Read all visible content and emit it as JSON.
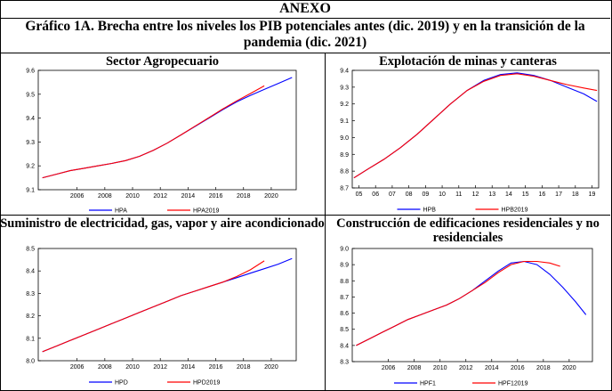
{
  "header": {
    "annex": "ANEXO",
    "figure_title": "Gráfico 1A. Brecha entre los niveles los PIB potenciales antes (dic. 2019) y en la transición de la pandemia (dic. 2021)"
  },
  "colors": {
    "series_a": "#0000ff",
    "series_b": "#ff0000"
  },
  "chart_data": [
    {
      "type": "line",
      "title": "Sector Agropecuario",
      "xlim": [
        2003.2,
        2021.8
      ],
      "ylim": [
        9.1,
        9.6
      ],
      "xticks": [
        2006,
        2008,
        2010,
        2012,
        2014,
        2016,
        2018,
        2020
      ],
      "yticks": [
        9.1,
        9.2,
        9.3,
        9.4,
        9.5,
        9.6
      ],
      "ytick_labels": [
        "9.1",
        "9.2",
        "9.3",
        "9.4",
        "9.5",
        "9.6"
      ],
      "series": [
        {
          "name": "HPA",
          "color": "#0000ff",
          "x": [
            2003.5,
            2004.5,
            2005.5,
            2006.5,
            2007.5,
            2008.5,
            2009.5,
            2010.5,
            2011.5,
            2012.5,
            2013.5,
            2014.5,
            2015.5,
            2016.5,
            2017.5,
            2018.5,
            2019.5,
            2020.5,
            2021.5
          ],
          "y": [
            9.15,
            9.165,
            9.18,
            9.19,
            9.2,
            9.21,
            9.222,
            9.24,
            9.265,
            9.295,
            9.33,
            9.365,
            9.4,
            9.435,
            9.468,
            9.495,
            9.52,
            9.545,
            9.57
          ]
        },
        {
          "name": "HPA2019",
          "color": "#ff0000",
          "x": [
            2003.5,
            2004.5,
            2005.5,
            2006.5,
            2007.5,
            2008.5,
            2009.5,
            2010.5,
            2011.5,
            2012.5,
            2013.5,
            2014.5,
            2015.5,
            2016.5,
            2017.5,
            2018.5,
            2019.5
          ],
          "y": [
            9.15,
            9.165,
            9.18,
            9.19,
            9.2,
            9.21,
            9.222,
            9.24,
            9.265,
            9.295,
            9.33,
            9.366,
            9.402,
            9.438,
            9.472,
            9.503,
            9.535
          ]
        }
      ]
    },
    {
      "type": "line",
      "title": "Explotación de minas y canteras",
      "xlim": [
        2004.6,
        2019.4
      ],
      "ylim": [
        8.7,
        9.4
      ],
      "xticks": [
        2005,
        2006,
        2007,
        2008,
        2009,
        2010,
        2011,
        2012,
        2013,
        2014,
        2015,
        2016,
        2017,
        2018,
        2019
      ],
      "xtick_labels": [
        "05",
        "06",
        "07",
        "08",
        "09",
        "10",
        "11",
        "12",
        "13",
        "14",
        "15",
        "16",
        "17",
        "18",
        "19"
      ],
      "yticks": [
        8.7,
        8.8,
        8.9,
        9.0,
        9.1,
        9.2,
        9.3,
        9.4
      ],
      "ytick_labels": [
        "8.7",
        "8.8",
        "8.9",
        "9.0",
        "9.1",
        "9.2",
        "9.3",
        "9.4"
      ],
      "series": [
        {
          "name": "HPB",
          "color": "#0000ff",
          "x": [
            2004.7,
            2005.5,
            2006.5,
            2007.5,
            2008.5,
            2009.5,
            2010.5,
            2011.5,
            2012.5,
            2013.5,
            2014.5,
            2015.5,
            2016.5,
            2017.5,
            2018.5,
            2019.3
          ],
          "y": [
            8.76,
            8.81,
            8.87,
            8.94,
            9.02,
            9.11,
            9.2,
            9.28,
            9.34,
            9.375,
            9.385,
            9.37,
            9.34,
            9.3,
            9.26,
            9.215
          ]
        },
        {
          "name": "HPB2019",
          "color": "#ff0000",
          "x": [
            2004.7,
            2005.5,
            2006.5,
            2007.5,
            2008.5,
            2009.5,
            2010.5,
            2011.5,
            2012.5,
            2013.5,
            2014.5,
            2015.5,
            2016.5,
            2017.5,
            2018.5,
            2019.3
          ],
          "y": [
            8.76,
            8.81,
            8.87,
            8.94,
            9.02,
            9.11,
            9.2,
            9.28,
            9.335,
            9.37,
            9.38,
            9.365,
            9.34,
            9.315,
            9.295,
            9.28
          ]
        }
      ]
    },
    {
      "type": "line",
      "title": "Suministro de electricidad, gas, vapor y aire acondicionado",
      "xlim": [
        2003.2,
        2021.8
      ],
      "ylim": [
        8.0,
        8.5
      ],
      "xticks": [
        2006,
        2008,
        2010,
        2012,
        2014,
        2016,
        2018,
        2020
      ],
      "yticks": [
        8.0,
        8.1,
        8.2,
        8.3,
        8.4,
        8.5
      ],
      "ytick_labels": [
        "8.0",
        "8.1",
        "8.2",
        "8.3",
        "8.4",
        "8.5"
      ],
      "series": [
        {
          "name": "HPD",
          "color": "#0000ff",
          "x": [
            2003.5,
            2004.5,
            2005.5,
            2006.5,
            2007.5,
            2008.5,
            2009.5,
            2010.5,
            2011.5,
            2012.5,
            2013.5,
            2014.5,
            2015.5,
            2016.5,
            2017.5,
            2018.5,
            2019.5,
            2020.5,
            2021.5
          ],
          "y": [
            8.04,
            8.065,
            8.09,
            8.115,
            8.14,
            8.165,
            8.19,
            8.215,
            8.24,
            8.265,
            8.29,
            8.31,
            8.33,
            8.35,
            8.37,
            8.39,
            8.41,
            8.43,
            8.455
          ]
        },
        {
          "name": "HPD2019",
          "color": "#ff0000",
          "x": [
            2003.5,
            2004.5,
            2005.5,
            2006.5,
            2007.5,
            2008.5,
            2009.5,
            2010.5,
            2011.5,
            2012.5,
            2013.5,
            2014.5,
            2015.5,
            2016.5,
            2017.5,
            2018.5,
            2019.5
          ],
          "y": [
            8.04,
            8.065,
            8.09,
            8.115,
            8.14,
            8.165,
            8.19,
            8.215,
            8.24,
            8.265,
            8.29,
            8.31,
            8.33,
            8.35,
            8.375,
            8.405,
            8.445
          ]
        }
      ]
    },
    {
      "type": "line",
      "title": "Construcción de edificaciones residenciales y no residenciales",
      "xlim": [
        2003.2,
        2021.8
      ],
      "ylim": [
        8.3,
        9.0
      ],
      "xticks": [
        2006,
        2008,
        2010,
        2012,
        2014,
        2016,
        2018,
        2020
      ],
      "yticks": [
        8.3,
        8.4,
        8.5,
        8.6,
        8.7,
        8.8,
        8.9,
        9.0
      ],
      "ytick_labels": [
        "8.3",
        "8.4",
        "8.5",
        "8.6",
        "8.7",
        "8.8",
        "8.9",
        "9.0"
      ],
      "series": [
        {
          "name": "HPF1",
          "color": "#0000ff",
          "x": [
            2003.5,
            2004.5,
            2005.5,
            2006.5,
            2007.5,
            2008.5,
            2009.5,
            2010.5,
            2011.5,
            2012.5,
            2013.5,
            2014.5,
            2015.5,
            2016.5,
            2017.5,
            2018.5,
            2019.5,
            2020.5,
            2021.3
          ],
          "y": [
            8.4,
            8.44,
            8.48,
            8.52,
            8.56,
            8.59,
            8.62,
            8.65,
            8.69,
            8.74,
            8.8,
            8.86,
            8.91,
            8.92,
            8.9,
            8.84,
            8.76,
            8.67,
            8.59
          ]
        },
        {
          "name": "HPF12019",
          "color": "#ff0000",
          "x": [
            2003.5,
            2004.5,
            2005.5,
            2006.5,
            2007.5,
            2008.5,
            2009.5,
            2010.5,
            2011.5,
            2012.5,
            2013.5,
            2014.5,
            2015.5,
            2016.5,
            2017.5,
            2018.5,
            2019.3
          ],
          "y": [
            8.4,
            8.44,
            8.48,
            8.52,
            8.56,
            8.59,
            8.62,
            8.65,
            8.69,
            8.74,
            8.79,
            8.85,
            8.9,
            8.92,
            8.92,
            8.91,
            8.89
          ]
        }
      ]
    }
  ]
}
